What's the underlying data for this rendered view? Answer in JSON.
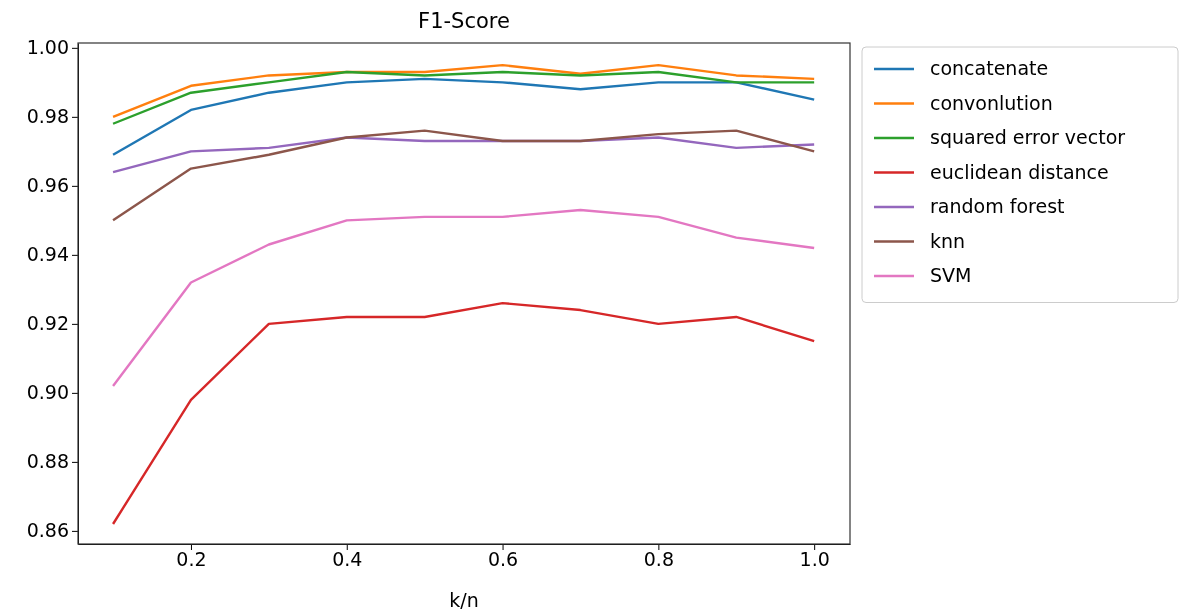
{
  "chart_data": {
    "type": "line",
    "title": "F1-Score",
    "xlabel": "k/n",
    "x": [
      0.1,
      0.2,
      0.3,
      0.4,
      0.5,
      0.6,
      0.7,
      0.8,
      0.9,
      1.0
    ],
    "series": [
      {
        "name": "concatenate",
        "color": "#1f77b4",
        "values": [
          0.969,
          0.982,
          0.987,
          0.99,
          0.991,
          0.99,
          0.988,
          0.99,
          0.99,
          0.985
        ]
      },
      {
        "name": "convonlution",
        "color": "#ff7f0e",
        "values": [
          0.98,
          0.989,
          0.992,
          0.993,
          0.993,
          0.995,
          0.9925,
          0.995,
          0.992,
          0.991
        ]
      },
      {
        "name": "squared error vector",
        "color": "#2ca02c",
        "values": [
          0.978,
          0.987,
          0.99,
          0.993,
          0.992,
          0.993,
          0.992,
          0.993,
          0.99,
          0.99
        ]
      },
      {
        "name": "euclidean distance",
        "color": "#d62728",
        "values": [
          0.862,
          0.898,
          0.92,
          0.922,
          0.922,
          0.926,
          0.924,
          0.92,
          0.922,
          0.915
        ]
      },
      {
        "name": "random forest",
        "color": "#9467bd",
        "values": [
          0.964,
          0.97,
          0.971,
          0.974,
          0.973,
          0.973,
          0.973,
          0.974,
          0.971,
          0.972
        ]
      },
      {
        "name": "knn",
        "color": "#8c564b",
        "values": [
          0.95,
          0.965,
          0.969,
          0.974,
          0.976,
          0.973,
          0.973,
          0.975,
          0.976,
          0.97
        ]
      },
      {
        "name": "SVM",
        "color": "#e377c2",
        "values": [
          0.902,
          0.932,
          0.943,
          0.95,
          0.951,
          0.951,
          0.953,
          0.951,
          0.945,
          0.942
        ]
      }
    ],
    "xlim": [
      0.055,
      1.046
    ],
    "ylim": [
      0.8562,
      1.0014
    ],
    "xticks": [
      {
        "value": 0.2,
        "label": "0.2"
      },
      {
        "value": 0.4,
        "label": "0.4"
      },
      {
        "value": 0.6,
        "label": "0.6"
      },
      {
        "value": 0.8,
        "label": "0.8"
      },
      {
        "value": 1.0,
        "label": "1.0"
      }
    ],
    "yticks": [
      {
        "value": 0.86,
        "label": "0.86"
      },
      {
        "value": 0.88,
        "label": "0.88"
      },
      {
        "value": 0.9,
        "label": "0.90"
      },
      {
        "value": 0.92,
        "label": "0.92"
      },
      {
        "value": 0.94,
        "label": "0.94"
      },
      {
        "value": 0.96,
        "label": "0.96"
      },
      {
        "value": 0.98,
        "label": "0.98"
      },
      {
        "value": 1.0,
        "label": "1.00"
      }
    ],
    "grid": false,
    "legend": "top right",
    "marker": "none",
    "line_style": "solid"
  }
}
